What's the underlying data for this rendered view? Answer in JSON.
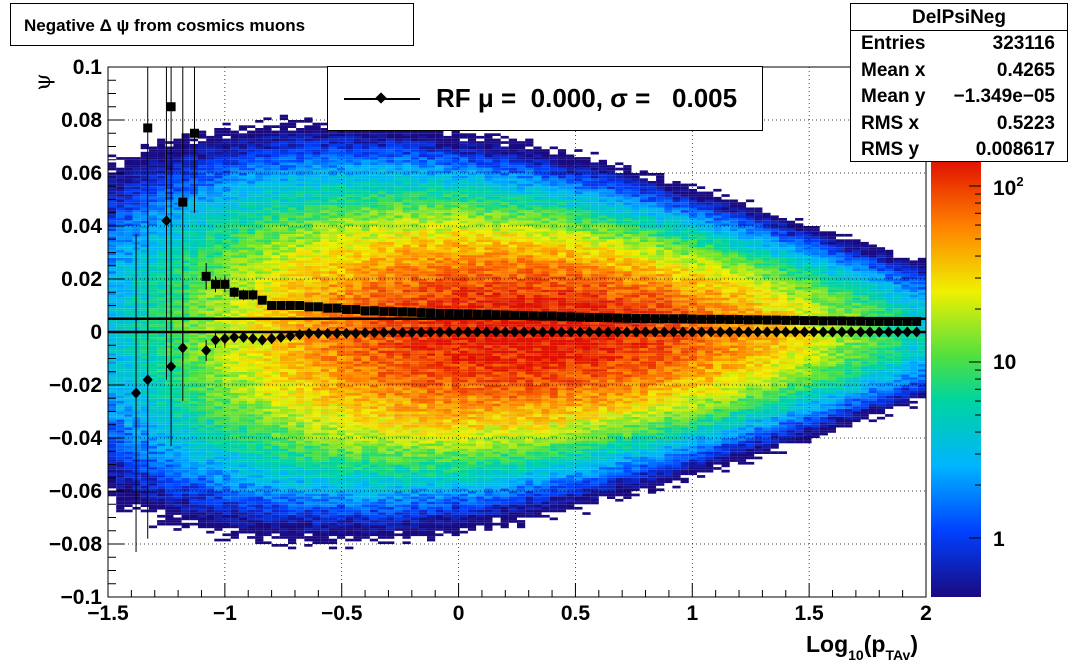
{
  "title": "Negative Δ ψ from cosmics muons",
  "stats": {
    "name": "DelPsiNeg",
    "rows": [
      {
        "label": "Entries",
        "value": "323116"
      },
      {
        "label": "Mean x",
        "value": "0.4265"
      },
      {
        "label": "Mean y",
        "value": "−1.349e−05"
      },
      {
        "label": "RMS x",
        "value": "0.5223"
      },
      {
        "label": "RMS y",
        "value": "0.008617"
      }
    ]
  },
  "legend": {
    "label": "RF μ =  0.000, σ =   0.005"
  },
  "colorbar": {
    "scale": "log",
    "tick_labels": [
      "1",
      "10",
      "10^2"
    ]
  },
  "chart_data": {
    "type": "heatmap",
    "title": "Negative Δ ψ from cosmics muons",
    "xlabel": "Log10(pTAv)",
    "ylabel": "ψ",
    "xlim": [
      -1.5,
      2
    ],
    "ylim": [
      -0.1,
      0.1
    ],
    "z_scale": "log",
    "grid": true,
    "x_ticks": [
      "−1.5",
      "−1",
      "−0.5",
      "0",
      "0.5",
      "1",
      "1.5",
      "2"
    ],
    "y_ticks": [
      "−0.1",
      "−0.08",
      "−0.06",
      "−0.04",
      "−0.02",
      "0",
      "0.02",
      "0.04",
      "0.06",
      "0.08",
      "0.1"
    ],
    "horizontal_lines": [
      0.0,
      0.005
    ],
    "series": [
      {
        "name": "mean",
        "marker": "diamond",
        "x": [
          -1.38,
          -1.33,
          -1.25,
          -1.23,
          -1.18,
          -1.08,
          -1.04,
          -1.0,
          -0.96,
          -0.92,
          -0.88,
          -0.84,
          -0.8,
          -0.76,
          -0.72,
          -0.68,
          -0.64,
          -0.6,
          -0.56,
          -0.52,
          -0.48,
          -0.44,
          -0.4,
          -0.36,
          -0.32,
          -0.28,
          -0.24,
          -0.2,
          -0.16,
          -0.12,
          -0.08,
          -0.04,
          0.0,
          0.04,
          0.08,
          0.12,
          0.16,
          0.2,
          0.24,
          0.28,
          0.32,
          0.36,
          0.4,
          0.44,
          0.48,
          0.52,
          0.56,
          0.6,
          0.64,
          0.68,
          0.72,
          0.76,
          0.8,
          0.84,
          0.88,
          0.92,
          0.96,
          1.0,
          1.04,
          1.08,
          1.12,
          1.16,
          1.2,
          1.24,
          1.28,
          1.32,
          1.36,
          1.4,
          1.44,
          1.48,
          1.52,
          1.56,
          1.6,
          1.64,
          1.68,
          1.72,
          1.76,
          1.8,
          1.84,
          1.88,
          1.92,
          1.96
        ],
        "y": [
          -0.023,
          -0.018,
          0.042,
          -0.013,
          -0.006,
          -0.007,
          -0.003,
          -0.0025,
          -0.002,
          -0.002,
          -0.0025,
          -0.003,
          -0.0025,
          -0.002,
          -0.0015,
          -0.001,
          -0.0005,
          -0.0005,
          -0.0005,
          -0.0005,
          -0.0005,
          -0.0005,
          -0.0003,
          -0.0003,
          -0.0002,
          -0.0002,
          -0.0002,
          -0.0002,
          -0.0001,
          -0.0001,
          -0.0001,
          0.0,
          0.0,
          0.0,
          0.0,
          0.0,
          0.0,
          0.0,
          0.0,
          0.0,
          0.0,
          0.0,
          0.0,
          0.0,
          0.0,
          0.0,
          0.0,
          0.0,
          0.0,
          0.0,
          0.0,
          0.0,
          0.0,
          0.0,
          0.0,
          0.0,
          0.0,
          0.0,
          0.0,
          0.0,
          0.0,
          0.0,
          0.0,
          0.0,
          0.0,
          0.0,
          0.0,
          0.0,
          0.0,
          0.0,
          0.0,
          0.0,
          0.0,
          0.0,
          0.0,
          0.0,
          0.0,
          0.0,
          0.0,
          0.0,
          0.0,
          0.0
        ],
        "err": [
          0.06,
          0.06,
          0.06,
          0.03,
          0.02,
          0.004,
          0.003,
          0.003,
          0.002,
          0.002,
          0.002,
          0.002,
          0.002,
          0.002,
          0.002,
          0.001,
          0.001,
          0.001,
          0.001,
          0.001,
          0.001,
          0.001,
          0.001,
          0.001,
          0.001,
          0.001,
          0.001,
          0.001,
          0.001,
          0.001,
          0.001,
          0.001,
          0.001,
          0.001,
          0.001,
          0.001,
          0.001,
          0.001,
          0.001,
          0.001,
          0.001,
          0.001,
          0.001,
          0.001,
          0.001,
          0.001,
          0.001,
          0.001,
          0.001,
          0.001,
          0.001,
          0.001,
          0.001,
          0.001,
          0.001,
          0.001,
          0.001,
          0.001,
          0.001,
          0.001,
          0.001,
          0.001,
          0.001,
          0.001,
          0.001,
          0.001,
          0.001,
          0.001,
          0.001,
          0.001,
          0.001,
          0.001,
          0.001,
          0.001,
          0.001,
          0.001,
          0.001,
          0.001,
          0.001,
          0.001,
          0.001,
          0.001
        ]
      },
      {
        "name": "sigma",
        "marker": "square",
        "x": [
          -1.33,
          -1.23,
          -1.18,
          -1.13,
          -1.08,
          -1.04,
          -1.0,
          -0.96,
          -0.92,
          -0.88,
          -0.84,
          -0.8,
          -0.76,
          -0.72,
          -0.68,
          -0.64,
          -0.6,
          -0.56,
          -0.52,
          -0.48,
          -0.44,
          -0.4,
          -0.36,
          -0.32,
          -0.28,
          -0.24,
          -0.2,
          -0.16,
          -0.12,
          -0.08,
          -0.04,
          0.0,
          0.04,
          0.08,
          0.12,
          0.16,
          0.2,
          0.24,
          0.28,
          0.32,
          0.36,
          0.4,
          0.44,
          0.48,
          0.52,
          0.56,
          0.6,
          0.64,
          0.68,
          0.72,
          0.76,
          0.8,
          0.84,
          0.88,
          0.92,
          0.96,
          1.0,
          1.04,
          1.08,
          1.12,
          1.16,
          1.2,
          1.24,
          1.28,
          1.32,
          1.36,
          1.4,
          1.44,
          1.48,
          1.52,
          1.56,
          1.6,
          1.64,
          1.68,
          1.72,
          1.76,
          1.8,
          1.84,
          1.88,
          1.92,
          1.96
        ],
        "y": [
          0.077,
          0.085,
          0.049,
          0.075,
          0.021,
          0.018,
          0.018,
          0.015,
          0.014,
          0.014,
          0.012,
          0.01,
          0.01,
          0.01,
          0.01,
          0.0095,
          0.0095,
          0.009,
          0.009,
          0.0085,
          0.0085,
          0.008,
          0.008,
          0.0078,
          0.0077,
          0.0076,
          0.0075,
          0.0073,
          0.0072,
          0.007,
          0.007,
          0.0068,
          0.0068,
          0.0067,
          0.0066,
          0.0065,
          0.0064,
          0.0063,
          0.0062,
          0.0061,
          0.006,
          0.006,
          0.0058,
          0.0057,
          0.0056,
          0.0055,
          0.0055,
          0.0054,
          0.0053,
          0.0052,
          0.0051,
          0.0051,
          0.005,
          0.005,
          0.005,
          0.005,
          0.0049,
          0.0048,
          0.0048,
          0.0048,
          0.0047,
          0.0047,
          0.0046,
          0.0046,
          0.0045,
          0.0045,
          0.0044,
          0.0044,
          0.0043,
          0.0043,
          0.0042,
          0.0042,
          0.0042,
          0.0041,
          0.0041,
          0.004,
          0.004,
          0.004,
          0.004,
          0.004,
          0.004
        ],
        "err": [
          0.08,
          0.08,
          0.06,
          0.03,
          0.005,
          0.003,
          0.003,
          0.002,
          0.002,
          0.002,
          0.001,
          0.001,
          0.001,
          0.001,
          0.001,
          0.001,
          0.001,
          0.001,
          0.001,
          0.001,
          0.001,
          0.001,
          0.001,
          0.001,
          0.001,
          0.001,
          0.001,
          0.001,
          0.001,
          0.001,
          0.001,
          0.001,
          0.001,
          0.001,
          0.001,
          0.001,
          0.001,
          0.001,
          0.001,
          0.001,
          0.001,
          0.001,
          0.001,
          0.001,
          0.001,
          0.001,
          0.001,
          0.001,
          0.001,
          0.001,
          0.001,
          0.001,
          0.001,
          0.001,
          0.001,
          0.001,
          0.001,
          0.001,
          0.001,
          0.001,
          0.001,
          0.001,
          0.001,
          0.001,
          0.001,
          0.001,
          0.001,
          0.001,
          0.001,
          0.001,
          0.001,
          0.001,
          0.001,
          0.001,
          0.001,
          0.001,
          0.001,
          0.001,
          0.001,
          0.001,
          0.001
        ]
      }
    ],
    "density": {
      "core_x": 0.3,
      "core_y": 0.0,
      "width_x": 0.9,
      "width_y_at_low_x": 0.04,
      "width_y_at_high_x": 0.015
    }
  }
}
